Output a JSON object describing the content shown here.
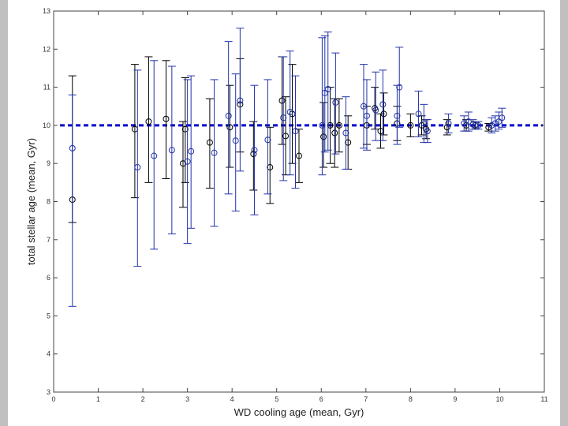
{
  "chart_data": {
    "type": "scatter",
    "title": "",
    "xlabel": "WD cooling age (mean, Gyr)",
    "ylabel": "total stellar age (mean, Gyr)",
    "xlim": [
      0,
      11
    ],
    "ylim": [
      3,
      13
    ],
    "xticks": [
      0,
      1,
      2,
      3,
      4,
      5,
      6,
      7,
      8,
      9,
      10,
      11
    ],
    "yticks": [
      3,
      4,
      5,
      6,
      7,
      8,
      9,
      10,
      11,
      12,
      13
    ],
    "grid": false,
    "reference_line": {
      "y": 10.0,
      "style": "dashed",
      "color": "#0000cc"
    },
    "series": [
      {
        "color": "#000000",
        "marker": "circle",
        "points": [
          {
            "x": 0.42,
            "y": 8.05,
            "lo": 7.45,
            "hi": 11.3
          },
          {
            "x": 1.82,
            "y": 9.9,
            "lo": 8.1,
            "hi": 11.6
          },
          {
            "x": 2.13,
            "y": 10.1,
            "lo": 8.5,
            "hi": 11.8
          },
          {
            "x": 2.52,
            "y": 10.17,
            "lo": 8.6,
            "hi": 11.7
          },
          {
            "x": 2.9,
            "y": 9.0,
            "lo": 7.85,
            "hi": 10.1
          },
          {
            "x": 2.95,
            "y": 9.9,
            "lo": 8.5,
            "hi": 11.25
          },
          {
            "x": 3.5,
            "y": 9.55,
            "lo": 8.35,
            "hi": 10.7
          },
          {
            "x": 3.95,
            "y": 9.95,
            "lo": 8.9,
            "hi": 11.05
          },
          {
            "x": 4.18,
            "y": 10.55,
            "lo": 9.3,
            "hi": 11.75
          },
          {
            "x": 4.48,
            "y": 9.25,
            "lo": 8.3,
            "hi": 10.1
          },
          {
            "x": 4.85,
            "y": 8.9,
            "lo": 7.95,
            "hi": 9.95
          },
          {
            "x": 5.12,
            "y": 10.65,
            "lo": 9.5,
            "hi": 11.8
          },
          {
            "x": 5.2,
            "y": 9.72,
            "lo": 8.7,
            "hi": 10.75
          },
          {
            "x": 5.35,
            "y": 10.3,
            "lo": 9.0,
            "hi": 11.6
          },
          {
            "x": 5.5,
            "y": 9.2,
            "lo": 8.5,
            "hi": 9.9
          },
          {
            "x": 6.05,
            "y": 9.7,
            "lo": 8.9,
            "hi": 10.6
          },
          {
            "x": 6.2,
            "y": 10.0,
            "lo": 9.0,
            "hi": 11.0
          },
          {
            "x": 6.3,
            "y": 9.8,
            "lo": 8.9,
            "hi": 10.7
          },
          {
            "x": 6.4,
            "y": 10.0,
            "lo": 9.3,
            "hi": 10.7
          },
          {
            "x": 6.6,
            "y": 9.55,
            "lo": 8.85,
            "hi": 10.25
          },
          {
            "x": 7.02,
            "y": 10.0,
            "lo": 9.5,
            "hi": 10.5
          },
          {
            "x": 7.2,
            "y": 10.45,
            "lo": 9.9,
            "hi": 11.0
          },
          {
            "x": 7.33,
            "y": 9.85,
            "lo": 9.4,
            "hi": 10.3
          },
          {
            "x": 7.4,
            "y": 10.3,
            "lo": 9.75,
            "hi": 10.85
          },
          {
            "x": 7.7,
            "y": 10.05,
            "lo": 9.6,
            "hi": 10.5
          },
          {
            "x": 8.0,
            "y": 10.0,
            "lo": 9.7,
            "hi": 10.3
          },
          {
            "x": 8.25,
            "y": 10.0,
            "lo": 9.75,
            "hi": 10.25
          },
          {
            "x": 8.35,
            "y": 9.9,
            "lo": 9.65,
            "hi": 10.15
          },
          {
            "x": 8.82,
            "y": 9.95,
            "lo": 9.75,
            "hi": 10.15
          },
          {
            "x": 9.25,
            "y": 10.0,
            "lo": 9.85,
            "hi": 10.15
          },
          {
            "x": 9.45,
            "y": 10.0,
            "lo": 9.9,
            "hi": 10.1
          },
          {
            "x": 9.75,
            "y": 9.95,
            "lo": 9.85,
            "hi": 10.05
          }
        ]
      },
      {
        "color": "#2233aa",
        "marker": "circle",
        "points": [
          {
            "x": 0.42,
            "y": 9.4,
            "lo": 5.25,
            "hi": 10.8
          },
          {
            "x": 1.88,
            "y": 8.9,
            "lo": 6.3,
            "hi": 11.45
          },
          {
            "x": 2.25,
            "y": 9.2,
            "lo": 6.75,
            "hi": 11.7
          },
          {
            "x": 2.65,
            "y": 9.35,
            "lo": 7.15,
            "hi": 11.55
          },
          {
            "x": 3.0,
            "y": 9.05,
            "lo": 6.9,
            "hi": 11.2
          },
          {
            "x": 3.08,
            "y": 9.32,
            "lo": 7.3,
            "hi": 11.3
          },
          {
            "x": 3.6,
            "y": 9.28,
            "lo": 7.35,
            "hi": 11.2
          },
          {
            "x": 3.92,
            "y": 10.25,
            "lo": 8.2,
            "hi": 12.2
          },
          {
            "x": 4.08,
            "y": 9.6,
            "lo": 7.75,
            "hi": 11.35
          },
          {
            "x": 4.18,
            "y": 10.65,
            "lo": 8.8,
            "hi": 12.55
          },
          {
            "x": 4.5,
            "y": 9.35,
            "lo": 7.65,
            "hi": 11.05
          },
          {
            "x": 4.8,
            "y": 9.62,
            "lo": 8.2,
            "hi": 11.2
          },
          {
            "x": 5.15,
            "y": 10.2,
            "lo": 8.55,
            "hi": 11.8
          },
          {
            "x": 5.3,
            "y": 10.35,
            "lo": 8.7,
            "hi": 11.95
          },
          {
            "x": 5.42,
            "y": 9.85,
            "lo": 8.35,
            "hi": 11.3
          },
          {
            "x": 6.02,
            "y": 10.0,
            "lo": 8.7,
            "hi": 12.3
          },
          {
            "x": 6.08,
            "y": 10.85,
            "lo": 9.3,
            "hi": 12.35
          },
          {
            "x": 6.15,
            "y": 10.95,
            "lo": 9.35,
            "hi": 12.45
          },
          {
            "x": 6.32,
            "y": 10.6,
            "lo": 9.25,
            "hi": 11.9
          },
          {
            "x": 6.55,
            "y": 9.8,
            "lo": 8.85,
            "hi": 10.75
          },
          {
            "x": 6.95,
            "y": 10.5,
            "lo": 9.4,
            "hi": 11.6
          },
          {
            "x": 7.02,
            "y": 10.25,
            "lo": 9.35,
            "hi": 11.2
          },
          {
            "x": 7.22,
            "y": 10.4,
            "lo": 9.6,
            "hi": 11.4
          },
          {
            "x": 7.38,
            "y": 10.55,
            "lo": 9.6,
            "hi": 11.45
          },
          {
            "x": 7.7,
            "y": 10.25,
            "lo": 9.5,
            "hi": 11.05
          },
          {
            "x": 7.75,
            "y": 11.0,
            "lo": 9.95,
            "hi": 12.05
          },
          {
            "x": 8.18,
            "y": 10.3,
            "lo": 9.7,
            "hi": 10.9
          },
          {
            "x": 8.3,
            "y": 10.05,
            "lo": 9.55,
            "hi": 10.55
          },
          {
            "x": 8.38,
            "y": 9.85,
            "lo": 9.55,
            "hi": 10.15
          },
          {
            "x": 8.85,
            "y": 10.05,
            "lo": 9.8,
            "hi": 10.3
          },
          {
            "x": 9.2,
            "y": 10.05,
            "lo": 9.85,
            "hi": 10.25
          },
          {
            "x": 9.3,
            "y": 10.1,
            "lo": 9.85,
            "hi": 10.35
          },
          {
            "x": 9.4,
            "y": 10.02,
            "lo": 9.9,
            "hi": 10.15
          },
          {
            "x": 9.52,
            "y": 10.0,
            "lo": 9.9,
            "hi": 10.1
          },
          {
            "x": 9.82,
            "y": 10.0,
            "lo": 9.8,
            "hi": 10.2
          },
          {
            "x": 9.9,
            "y": 10.05,
            "lo": 9.85,
            "hi": 10.25
          },
          {
            "x": 9.98,
            "y": 10.1,
            "lo": 9.9,
            "hi": 10.35
          },
          {
            "x": 10.05,
            "y": 10.2,
            "lo": 9.95,
            "hi": 10.45
          }
        ]
      }
    ]
  }
}
